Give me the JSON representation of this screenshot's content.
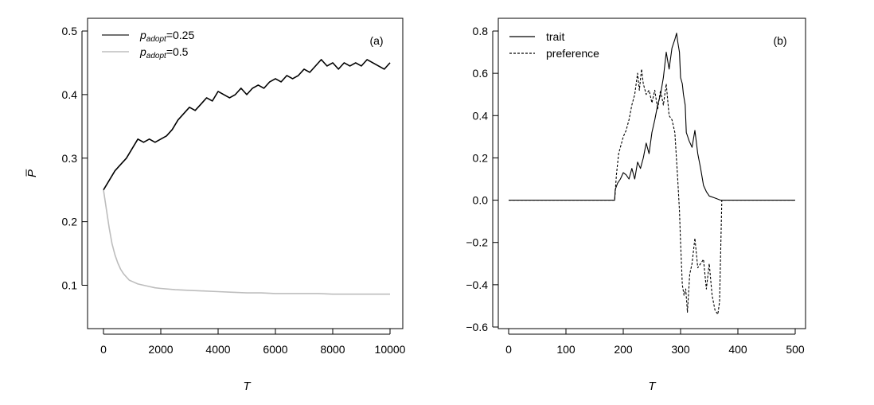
{
  "chart_data": [
    {
      "panel": "a",
      "type": "line",
      "panel_label": "(a)",
      "xlabel": "T",
      "ylabel": "P̅",
      "xlim": [
        0,
        10000
      ],
      "ylim": [
        0.03,
        0.5
      ],
      "xticks": [
        0,
        2000,
        4000,
        6000,
        8000,
        10000
      ],
      "xtick_labels": [
        "0",
        "2000",
        "4000",
        "6000",
        "8000",
        "10000"
      ],
      "yticks": [
        0.1,
        0.2,
        0.3,
        0.4,
        0.5
      ],
      "ytick_labels": [
        "0.1",
        "0.2",
        "0.3",
        "0.4",
        "0.5"
      ],
      "grid": false,
      "legend_position": "top-left",
      "series": [
        {
          "name": "p_adopt=0.25",
          "legend_main": "p",
          "legend_sub": "adopt",
          "legend_value": "=0.25",
          "color": "#000000",
          "dash": "solid",
          "x": [
            0,
            200,
            400,
            600,
            800,
            1000,
            1200,
            1400,
            1600,
            1800,
            2000,
            2200,
            2400,
            2600,
            2800,
            3000,
            3200,
            3400,
            3600,
            3800,
            4000,
            4200,
            4400,
            4600,
            4800,
            5000,
            5200,
            5400,
            5600,
            5800,
            6000,
            6200,
            6400,
            6600,
            6800,
            7000,
            7200,
            7400,
            7600,
            7800,
            8000,
            8200,
            8400,
            8600,
            8800,
            9000,
            9200,
            9400,
            9600,
            9800,
            10000
          ],
          "y": [
            0.25,
            0.265,
            0.28,
            0.29,
            0.3,
            0.315,
            0.33,
            0.325,
            0.33,
            0.325,
            0.33,
            0.335,
            0.345,
            0.36,
            0.37,
            0.38,
            0.375,
            0.385,
            0.395,
            0.39,
            0.405,
            0.4,
            0.395,
            0.4,
            0.41,
            0.4,
            0.41,
            0.415,
            0.41,
            0.42,
            0.425,
            0.42,
            0.43,
            0.425,
            0.43,
            0.44,
            0.435,
            0.445,
            0.455,
            0.445,
            0.45,
            0.44,
            0.45,
            0.445,
            0.45,
            0.445,
            0.455,
            0.45,
            0.445,
            0.44,
            0.45
          ]
        },
        {
          "name": "p_adopt=0.5",
          "legend_main": "p",
          "legend_sub": "adopt",
          "legend_value": "=0.5",
          "color": "#bdbdbd",
          "dash": "solid",
          "x": [
            0,
            100,
            200,
            300,
            400,
            500,
            600,
            700,
            800,
            900,
            1000,
            1200,
            1400,
            1600,
            1800,
            2000,
            2500,
            3000,
            3500,
            4000,
            4500,
            5000,
            5500,
            6000,
            6500,
            7000,
            7500,
            8000,
            8500,
            9000,
            9500,
            10000
          ],
          "y": [
            0.25,
            0.22,
            0.19,
            0.165,
            0.148,
            0.135,
            0.125,
            0.118,
            0.113,
            0.108,
            0.106,
            0.102,
            0.1,
            0.098,
            0.096,
            0.095,
            0.093,
            0.092,
            0.091,
            0.09,
            0.089,
            0.088,
            0.088,
            0.087,
            0.087,
            0.087,
            0.087,
            0.086,
            0.086,
            0.086,
            0.086,
            0.086
          ]
        }
      ]
    },
    {
      "panel": "b",
      "type": "line",
      "panel_label": "(b)",
      "xlabel": "T",
      "ylabel": "",
      "xlim": [
        0,
        500
      ],
      "ylim": [
        -0.6,
        0.8
      ],
      "xticks": [
        0,
        100,
        200,
        300,
        400,
        500
      ],
      "xtick_labels": [
        "0",
        "100",
        "200",
        "300",
        "400",
        "500"
      ],
      "yticks": [
        -0.6,
        -0.4,
        -0.2,
        0.0,
        0.2,
        0.4,
        0.6,
        0.8
      ],
      "ytick_labels": [
        "−0.6",
        "−0.4",
        "−0.2",
        "0.0",
        "0.2",
        "0.4",
        "0.6",
        "0.8"
      ],
      "grid": false,
      "legend_position": "top-left",
      "series": [
        {
          "name": "trait",
          "color": "#000000",
          "dash": "solid",
          "x": [
            0,
            185,
            186,
            190,
            195,
            200,
            205,
            210,
            215,
            220,
            225,
            230,
            235,
            240,
            245,
            250,
            255,
            260,
            265,
            270,
            275,
            280,
            285,
            290,
            293,
            295,
            298,
            300,
            303,
            305,
            308,
            310,
            315,
            320,
            325,
            330,
            335,
            340,
            345,
            350,
            360,
            370,
            500
          ],
          "y": [
            0.0,
            0.0,
            0.05,
            0.08,
            0.1,
            0.13,
            0.12,
            0.1,
            0.15,
            0.1,
            0.18,
            0.15,
            0.2,
            0.27,
            0.22,
            0.32,
            0.38,
            0.45,
            0.5,
            0.58,
            0.7,
            0.62,
            0.72,
            0.76,
            0.79,
            0.75,
            0.7,
            0.58,
            0.55,
            0.5,
            0.45,
            0.32,
            0.28,
            0.25,
            0.33,
            0.22,
            0.15,
            0.07,
            0.04,
            0.02,
            0.01,
            0.0,
            0.0
          ]
        },
        {
          "name": "preference",
          "color": "#000000",
          "dash": "dashed",
          "x": [
            0,
            185,
            188,
            192,
            196,
            200,
            205,
            210,
            215,
            220,
            225,
            228,
            232,
            235,
            240,
            245,
            250,
            255,
            260,
            265,
            270,
            275,
            280,
            285,
            290,
            295,
            298,
            300,
            303,
            306,
            309,
            312,
            316,
            320,
            325,
            330,
            335,
            340,
            345,
            350,
            355,
            360,
            365,
            368,
            372,
            500
          ],
          "y": [
            0.0,
            0.0,
            0.12,
            0.22,
            0.26,
            0.3,
            0.33,
            0.38,
            0.45,
            0.5,
            0.6,
            0.52,
            0.62,
            0.55,
            0.5,
            0.52,
            0.46,
            0.52,
            0.43,
            0.52,
            0.45,
            0.55,
            0.4,
            0.38,
            0.32,
            0.1,
            -0.05,
            -0.2,
            -0.4,
            -0.45,
            -0.42,
            -0.53,
            -0.35,
            -0.3,
            -0.18,
            -0.32,
            -0.3,
            -0.28,
            -0.42,
            -0.3,
            -0.45,
            -0.52,
            -0.54,
            -0.48,
            0.0,
            0.0
          ]
        }
      ]
    }
  ]
}
